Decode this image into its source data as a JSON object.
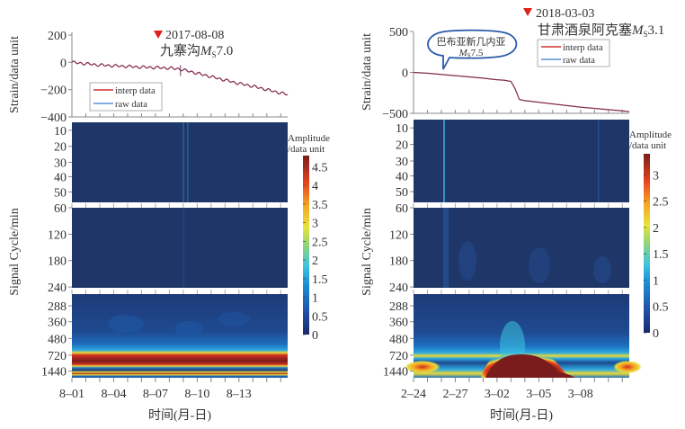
{
  "figure": {
    "x_axis_label": "时间(月-日)",
    "strain_axis_label": "Strain/data unit",
    "cycle_axis_label": "Signal Cycle/min",
    "colorbar_label_line1": "Amplitude",
    "colorbar_label_line2": "/data unit",
    "event_marker_color": "#e0201b",
    "series_colors": {
      "interp": "#d0312d",
      "raw": "#5a8fcf"
    }
  },
  "chart_data": [
    {
      "type": "line",
      "panel": "left-strain",
      "event_date": "2017-08-08",
      "event_name": "九寨沟",
      "event_mag_prefix": "M",
      "event_mag_sub": "S",
      "event_mag_value": "7.0",
      "legend": [
        "interp data",
        "raw data"
      ],
      "legend_position": "bottom-left",
      "ylabel": "Strain/data unit",
      "ylim": [
        -400,
        200
      ],
      "yticks": [
        200,
        0,
        -200,
        -400
      ],
      "xticks": [
        "8-01",
        "8-04",
        "8-07",
        "8-10",
        "8-13"
      ],
      "x_days": [
        0,
        15.5
      ],
      "event_day": 7.8,
      "series": [
        {
          "name": "interp data",
          "x": [
            0,
            1,
            2,
            3,
            4,
            5,
            6,
            7,
            7.8,
            8,
            9,
            10,
            11,
            12,
            13,
            14,
            15,
            15.5
          ],
          "y": [
            0,
            -10,
            -20,
            -25,
            -30,
            -35,
            -38,
            -42,
            -50,
            -55,
            -80,
            -105,
            -130,
            -155,
            -175,
            -200,
            -225,
            -235
          ]
        },
        {
          "name": "raw data",
          "x": [
            0,
            1,
            2,
            3,
            4,
            5,
            6,
            7,
            7.8,
            8,
            9,
            10,
            11,
            12,
            13,
            14,
            15,
            15.5
          ],
          "y": [
            0,
            -10,
            -20,
            -25,
            -30,
            -35,
            -38,
            -42,
            -50,
            -55,
            -80,
            -105,
            -130,
            -155,
            -175,
            -200,
            -225,
            -235
          ]
        }
      ],
      "oscillation_amplitude": 8
    },
    {
      "type": "heatmap",
      "panel": "left-wavelet",
      "ylabel": "Signal Cycle/min",
      "band_ticks": [
        [
          "10",
          "20",
          "30",
          "40",
          "50"
        ],
        [
          "60",
          "120",
          "180",
          "240"
        ],
        [
          "288",
          "360",
          "480",
          "720",
          "1440"
        ]
      ],
      "xticks": [
        "8-01",
        "8-04",
        "8-07",
        "8-10",
        "8-13"
      ],
      "xlabel": "时间(月-日)",
      "colorbar": {
        "min": 0,
        "max": 4.8,
        "ticks": [
          "4.5",
          "4",
          "3.5",
          "3",
          "2.5",
          "2",
          "1.5",
          "1",
          "0.5",
          "0"
        ]
      },
      "features": [
        {
          "desc": "strong band at 720 min across whole period",
          "period_min": 720,
          "amplitude": 4.8
        },
        {
          "desc": "band at 1440 min",
          "period_min": 1440,
          "amplitude": 4.5
        },
        {
          "desc": "weak vertical streak near event",
          "day": 7.8,
          "amplitude": 0.8
        }
      ]
    },
    {
      "type": "line",
      "panel": "right-strain",
      "event_date": "2018-03-03",
      "event_name": "甘肃酒泉阿克塞",
      "event_mag_prefix": "M",
      "event_mag_sub": "S",
      "event_mag_value": "3.1",
      "annotation_line1": "巴布亚新几内亚",
      "annotation_mag_prefix": "M",
      "annotation_mag_sub": "S",
      "annotation_mag_value": "7.5",
      "legend": [
        "interp data",
        "raw data"
      ],
      "legend_position": "top-right",
      "ylabel": "Strain/data unit",
      "ylim": [
        -500,
        500
      ],
      "yticks": [
        500,
        0,
        -500
      ],
      "xticks": [
        "2-24",
        "2-27",
        "3-02",
        "3-05",
        "3-08"
      ],
      "x_days": [
        0,
        15.5
      ],
      "event_day": 7.3,
      "series": [
        {
          "name": "interp data",
          "x": [
            0,
            1,
            2,
            3,
            4,
            5,
            6,
            6.5,
            7,
            7.3,
            7.6,
            8,
            9,
            10,
            11,
            12,
            13,
            14,
            15,
            15.5
          ],
          "y": [
            0,
            -10,
            -25,
            -40,
            -55,
            -70,
            -90,
            -95,
            -110,
            -200,
            -330,
            -345,
            -365,
            -385,
            -405,
            -425,
            -440,
            -455,
            -470,
            -480
          ]
        },
        {
          "name": "raw data",
          "x": [
            0,
            1,
            2,
            3,
            4,
            5,
            6,
            6.5,
            7,
            7.3,
            7.6,
            8,
            9,
            10,
            11,
            12,
            13,
            14,
            15,
            15.5
          ],
          "y": [
            0,
            -10,
            -25,
            -40,
            -55,
            -70,
            -90,
            -95,
            -110,
            -200,
            -330,
            -345,
            -365,
            -385,
            -405,
            -425,
            -440,
            -455,
            -470,
            -480
          ]
        }
      ],
      "oscillation_amplitude": 0
    },
    {
      "type": "heatmap",
      "panel": "right-wavelet",
      "ylabel": "Signal Cycle/min",
      "band_ticks": [
        [
          "10",
          "20",
          "30",
          "40",
          "50"
        ],
        [
          "60",
          "120",
          "180",
          "240"
        ],
        [
          "288",
          "360",
          "480",
          "720",
          "1440"
        ]
      ],
      "xticks": [
        "2-24",
        "2-27",
        "3-02",
        "3-05",
        "3-08"
      ],
      "xlabel": "时间(月-日)",
      "colorbar": {
        "min": 0,
        "max": 3.4,
        "ticks": [
          "3",
          "2.5",
          "2",
          "1.5",
          "1",
          "0.5",
          "0"
        ]
      },
      "features": [
        {
          "desc": "strong high-amplitude lobe at 720-1440 min around 3-01 to 3-05",
          "amplitude": 3.4
        },
        {
          "desc": "vertical streak at 2-26 in short-period band",
          "day": 2,
          "amplitude": 1.2
        }
      ]
    }
  ]
}
